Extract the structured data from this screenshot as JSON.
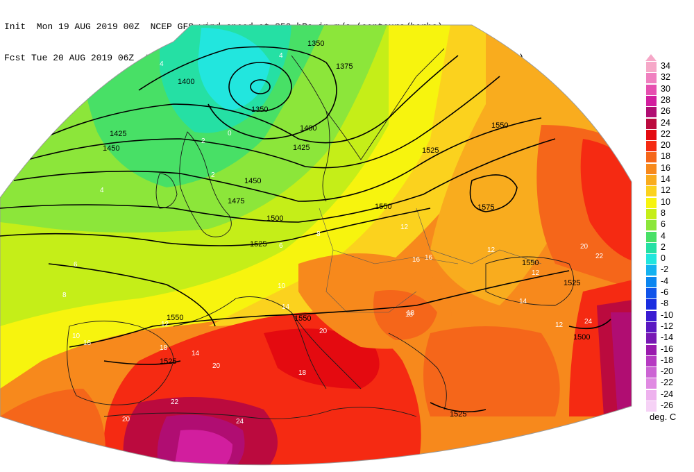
{
  "header": {
    "line1": "Init  Mon 19 AUG 2019 00Z  NCEP GFS wind speed at 850 hPa in m/s (contours/barbs)",
    "line2": "Fcst Tue 20 AUG 2019 06Z  temperature (shaded/dotted) and geopotential height at 850 hPa (black)"
  },
  "legend": {
    "units": "deg. C",
    "levels": [
      {
        "label": "34",
        "color": "#f6a8c8"
      },
      {
        "label": "32",
        "color": "#f080c0"
      },
      {
        "label": "30",
        "color": "#e64fb0"
      },
      {
        "label": "28",
        "color": "#d21e9e"
      },
      {
        "label": "26",
        "color": "#b00d72"
      },
      {
        "label": "24",
        "color": "#bb0a3e"
      },
      {
        "label": "22",
        "color": "#e40a10"
      },
      {
        "label": "20",
        "color": "#f52a12"
      },
      {
        "label": "18",
        "color": "#f5661a"
      },
      {
        "label": "16",
        "color": "#f7891c"
      },
      {
        "label": "14",
        "color": "#f9ac1e"
      },
      {
        "label": "12",
        "color": "#fbd21e"
      },
      {
        "label": "10",
        "color": "#f7f40e"
      },
      {
        "label": "8",
        "color": "#c5ee18"
      },
      {
        "label": "6",
        "color": "#8ce63a"
      },
      {
        "label": "4",
        "color": "#48e066"
      },
      {
        "label": "2",
        "color": "#25e0a4"
      },
      {
        "label": "0",
        "color": "#22e6de"
      },
      {
        "label": "-2",
        "color": "#14b2f0"
      },
      {
        "label": "-4",
        "color": "#0a86f0"
      },
      {
        "label": "-6",
        "color": "#1054ea"
      },
      {
        "label": "-8",
        "color": "#1a2ee0"
      },
      {
        "label": "-10",
        "color": "#3a1cd2"
      },
      {
        "label": "-12",
        "color": "#5a18c2"
      },
      {
        "label": "-14",
        "color": "#7818b4"
      },
      {
        "label": "-16",
        "color": "#9a1aae"
      },
      {
        "label": "-18",
        "color": "#b63ac2"
      },
      {
        "label": "-20",
        "color": "#cc64d4"
      },
      {
        "label": "-22",
        "color": "#e08ae2"
      },
      {
        "label": "-24",
        "color": "#eeb2ee"
      },
      {
        "label": "-26",
        "color": "#f6d2f6"
      }
    ]
  },
  "contours": {
    "height_labels": [
      "1350",
      "1375",
      "1350",
      "1400",
      "1400",
      "1425",
      "1425",
      "1450",
      "1450",
      "1475",
      "1500",
      "1525",
      "1525",
      "1550",
      "1550",
      "1575",
      "1550",
      "1525",
      "1500",
      "1550",
      "1525",
      "1525",
      "1550"
    ],
    "temp_labels": [
      "4",
      "0",
      "4",
      "2",
      "2",
      "4",
      "6",
      "8",
      "10",
      "12",
      "16",
      "20",
      "18",
      "14",
      "12",
      "14",
      "12",
      "16",
      "20",
      "22",
      "24",
      "24",
      "18",
      "16",
      "12",
      "10",
      "8",
      "6",
      "14",
      "20",
      "22",
      "18",
      "18",
      "20",
      "12"
    ]
  }
}
